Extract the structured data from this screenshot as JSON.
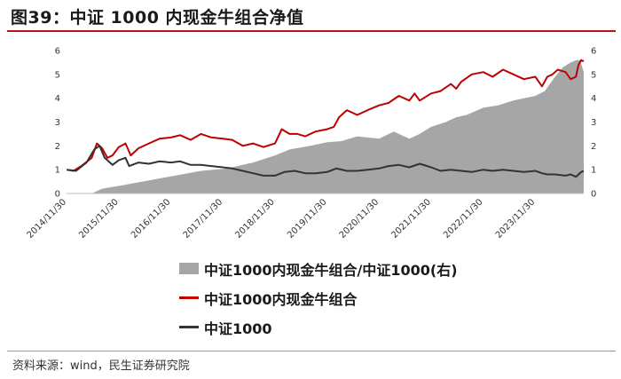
{
  "title": "图39：中证 1000 内现金牛组合净值",
  "source": "资料来源：wind，民生证券研究院",
  "colors": {
    "ratio_area": "#a6a6a6",
    "portfolio": "#c00000",
    "index": "#333333",
    "accent_rule": "#b5121b"
  },
  "chart_data": {
    "type": "line",
    "x_ticks": [
      "2014/11/30",
      "2015/11/30",
      "2016/11/30",
      "2017/11/30",
      "2018/11/30",
      "2019/11/30",
      "2020/11/30",
      "2021/11/30",
      "2022/11/30",
      "2023/11/30"
    ],
    "ylim_left": [
      0,
      6
    ],
    "ylim_right": [
      0,
      6
    ],
    "y_ticks_left": [
      "0",
      "1",
      "2",
      "3",
      "4",
      "5",
      "6"
    ],
    "y_ticks_right": [
      "0",
      "1",
      "2",
      "3",
      "4",
      "5",
      "6"
    ],
    "x_range": [
      2014.9167,
      2024.85
    ],
    "legend_position": "bottom",
    "series": [
      {
        "name": "中证1000内现金牛组合/中证1000(右)",
        "type": "area",
        "axis": "right",
        "x": [
          2014.92,
          2015.4,
          2015.6,
          2016.0,
          2016.5,
          2017.0,
          2017.5,
          2018.0,
          2018.5,
          2018.92,
          2019.2,
          2019.6,
          2019.92,
          2020.2,
          2020.5,
          2020.92,
          2021.2,
          2021.5,
          2021.7,
          2021.92,
          2022.2,
          2022.4,
          2022.6,
          2022.92,
          2023.2,
          2023.5,
          2023.7,
          2023.92,
          2024.1,
          2024.3,
          2024.45,
          2024.6,
          2024.7,
          2024.78,
          2024.85
        ],
        "values": [
          0.0,
          0.0,
          0.2,
          0.35,
          0.55,
          0.75,
          0.95,
          1.05,
          1.3,
          1.6,
          1.85,
          2.0,
          2.15,
          2.2,
          2.4,
          2.3,
          2.6,
          2.3,
          2.5,
          2.8,
          3.0,
          3.2,
          3.3,
          3.6,
          3.7,
          3.9,
          4.0,
          4.1,
          4.3,
          4.9,
          5.3,
          5.5,
          5.6,
          5.6,
          5.1
        ]
      },
      {
        "name": "中证1000内现金牛组合",
        "type": "line",
        "axis": "left",
        "x": [
          2014.92,
          2015.05,
          2015.2,
          2015.4,
          2015.5,
          2015.6,
          2015.7,
          2015.8,
          2015.92,
          2016.05,
          2016.15,
          2016.3,
          2016.5,
          2016.7,
          2016.92,
          2017.1,
          2017.3,
          2017.5,
          2017.7,
          2017.92,
          2018.1,
          2018.3,
          2018.5,
          2018.7,
          2018.92,
          2019.05,
          2019.2,
          2019.35,
          2019.5,
          2019.7,
          2019.92,
          2020.05,
          2020.15,
          2020.3,
          2020.5,
          2020.7,
          2020.92,
          2021.1,
          2021.3,
          2021.5,
          2021.6,
          2021.7,
          2021.92,
          2022.1,
          2022.3,
          2022.4,
          2022.5,
          2022.7,
          2022.92,
          2023.1,
          2023.3,
          2023.5,
          2023.7,
          2023.92,
          2024.05,
          2024.15,
          2024.25,
          2024.35,
          2024.5,
          2024.6,
          2024.7,
          2024.75,
          2024.8,
          2024.85
        ],
        "values": [
          1.0,
          0.95,
          1.15,
          1.5,
          2.1,
          1.9,
          1.5,
          1.6,
          1.95,
          2.1,
          1.6,
          1.9,
          2.1,
          2.3,
          2.35,
          2.45,
          2.25,
          2.5,
          2.35,
          2.3,
          2.25,
          2.0,
          2.1,
          1.95,
          2.1,
          2.7,
          2.5,
          2.5,
          2.4,
          2.6,
          2.7,
          2.8,
          3.2,
          3.5,
          3.3,
          3.5,
          3.7,
          3.8,
          4.1,
          3.9,
          4.2,
          3.9,
          4.2,
          4.3,
          4.6,
          4.4,
          4.7,
          5.0,
          5.1,
          4.9,
          5.2,
          5.0,
          4.8,
          4.9,
          4.5,
          4.9,
          5.0,
          5.2,
          5.1,
          4.8,
          4.9,
          5.4,
          5.6,
          5.55
        ]
      },
      {
        "name": "中证1000",
        "type": "line",
        "axis": "left",
        "x": [
          2014.92,
          2015.1,
          2015.3,
          2015.45,
          2015.55,
          2015.65,
          2015.8,
          2015.92,
          2016.05,
          2016.12,
          2016.3,
          2016.5,
          2016.7,
          2016.92,
          2017.1,
          2017.3,
          2017.5,
          2017.7,
          2017.92,
          2018.1,
          2018.3,
          2018.5,
          2018.7,
          2018.92,
          2019.1,
          2019.3,
          2019.5,
          2019.7,
          2019.92,
          2020.1,
          2020.3,
          2020.5,
          2020.7,
          2020.92,
          2021.1,
          2021.3,
          2021.5,
          2021.7,
          2021.92,
          2022.1,
          2022.3,
          2022.5,
          2022.7,
          2022.92,
          2023.1,
          2023.3,
          2023.5,
          2023.7,
          2023.92,
          2024.05,
          2024.15,
          2024.3,
          2024.5,
          2024.6,
          2024.7,
          2024.8,
          2024.85
        ],
        "values": [
          1.0,
          0.95,
          1.3,
          1.85,
          2.0,
          1.5,
          1.2,
          1.4,
          1.5,
          1.15,
          1.3,
          1.25,
          1.35,
          1.3,
          1.35,
          1.2,
          1.2,
          1.15,
          1.1,
          1.05,
          0.95,
          0.85,
          0.75,
          0.75,
          0.9,
          0.95,
          0.85,
          0.85,
          0.9,
          1.05,
          0.95,
          0.95,
          1.0,
          1.05,
          1.15,
          1.2,
          1.1,
          1.25,
          1.1,
          0.95,
          1.0,
          0.95,
          0.9,
          1.0,
          0.95,
          1.0,
          0.95,
          0.9,
          0.95,
          0.85,
          0.8,
          0.8,
          0.75,
          0.8,
          0.7,
          0.9,
          0.95
        ]
      }
    ]
  }
}
